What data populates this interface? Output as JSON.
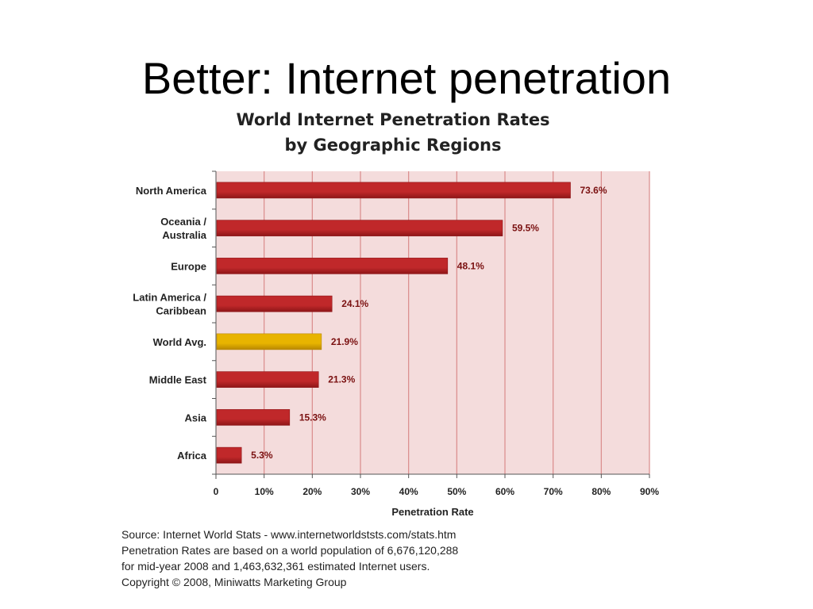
{
  "slide": {
    "title": "Better: Internet penetration"
  },
  "chart_data": {
    "type": "bar",
    "orientation": "horizontal",
    "title": "World Internet Penetration Rates",
    "subtitle": "by Geographic Regions",
    "xlabel": "Penetration Rate",
    "ylabel": "",
    "xlim": [
      0,
      90
    ],
    "x_ticks": [
      "0",
      "10%",
      "20%",
      "30%",
      "40%",
      "50%",
      "60%",
      "70%",
      "80%",
      "90%"
    ],
    "x_tick_values": [
      0,
      10,
      20,
      30,
      40,
      50,
      60,
      70,
      80,
      90
    ],
    "grid": true,
    "legend": "none",
    "categories": [
      [
        "North America"
      ],
      [
        "Oceania  /",
        "Australia"
      ],
      [
        "Europe"
      ],
      [
        "Latin America /",
        "Caribbean"
      ],
      [
        "World Avg."
      ],
      [
        "Middle East"
      ],
      [
        "Asia"
      ],
      [
        "Africa"
      ]
    ],
    "values": [
      73.6,
      59.5,
      48.1,
      24.1,
      21.9,
      21.3,
      15.3,
      5.3
    ],
    "value_labels": [
      "73.6%",
      "59.5%",
      "48.1%",
      "24.1%",
      "21.9%",
      "21.3%",
      "15.3%",
      "5.3%"
    ],
    "highlight_index": 4,
    "colors": {
      "bar": "#c0282a",
      "bar_dark": "#8e1618",
      "bar_highlight": "#e8b400",
      "bar_highlight_dark": "#b88700",
      "plot_background": "#f4dcdc",
      "grid": "#d98a8a",
      "axis": "#555555"
    }
  },
  "source": {
    "lines": [
      "Source: Internet World Stats - www.internetworldststs.com/stats.htm",
      "Penetration Rates are based on a world population of 6,676,120,288",
      "for mid-year 2008 and 1,463,632,361 estimated Internet users.",
      "Copyright © 2008, Miniwatts Marketing Group"
    ]
  }
}
